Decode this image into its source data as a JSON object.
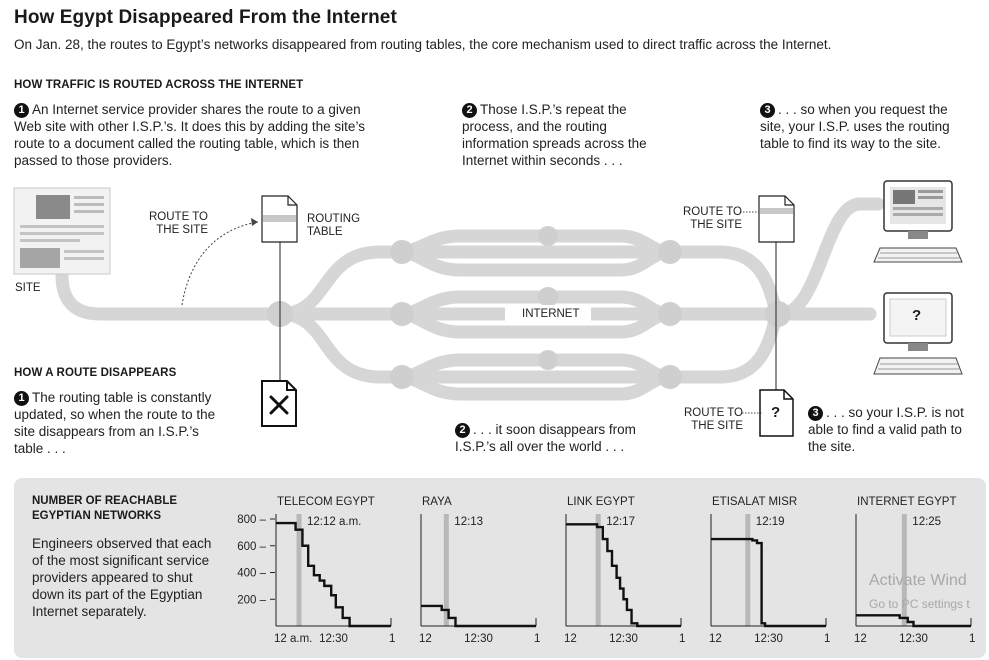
{
  "header": {
    "title": "How Egypt Disappeared From the Internet",
    "subtitle": "On Jan. 28, the routes to Egypt’s networks disappeared from routing tables, the core mechanism used to direct traffic across the Internet."
  },
  "routing": {
    "heading": "HOW TRAFFIC IS ROUTED ACROSS THE INTERNET",
    "steps": [
      {
        "num": "1",
        "text": "An Internet service provider shares the route to a given Web site with other I.S.P.’s. It does this by adding the site’s route to a document called the routing table, which is then passed to those providers."
      },
      {
        "num": "2",
        "text": "Those I.S.P.’s repeat the process, and the routing information spreads across the Internet within seconds . . ."
      },
      {
        "num": "3",
        "text": ". . . so when you request the site, your I.S.P. uses the routing table to find its way to the site."
      }
    ]
  },
  "diagram": {
    "site_label": "SITE",
    "route_to_site_1": "ROUTE TO THE SITE",
    "routing_table": "ROUTING TABLE",
    "internet": "INTERNET",
    "route_to_site_2": "ROUTE TO THE SITE",
    "route_to_site_3": "ROUTE TO THE SITE",
    "question": "?"
  },
  "disappear": {
    "heading": "HOW A ROUTE DISAPPEARS",
    "steps": [
      {
        "num": "1",
        "text": "The routing table is constantly updated, so when the route to the site disappears from an I.S.P.’s table . . ."
      },
      {
        "num": "2",
        "text": ". . . it soon disappears from I.S.P.’s all over the world . . ."
      },
      {
        "num": "3",
        "text": ". . . so your I.S.P. is not able to find a valid path to the site."
      }
    ]
  },
  "panel": {
    "title": "NUMBER OF REACHABLE EGYPTIAN NETWORKS",
    "description": "Engineers observed that each of the most significant service providers appeared to shut down its part of the Egyptian Internet separately."
  },
  "chart_data": [
    {
      "type": "line",
      "title": "TELECOM EGYPT",
      "shutdown_label": "12:12 a.m.",
      "shutdown_time": 0.2,
      "ylim": [
        0,
        800
      ],
      "yticks": [
        800,
        600,
        400,
        200
      ],
      "xlim": [
        0,
        1
      ],
      "xtick_labels": [
        "12 a.m.",
        "12:30",
        "1"
      ],
      "x": [
        0,
        0.17,
        0.17,
        0.23,
        0.23,
        0.28,
        0.28,
        0.33,
        0.33,
        0.38,
        0.38,
        0.42,
        0.42,
        0.48,
        0.48,
        0.52,
        0.52,
        0.58,
        0.58,
        0.64,
        0.64,
        0.75,
        0.75,
        1.0
      ],
      "y": [
        770,
        770,
        720,
        720,
        600,
        600,
        450,
        450,
        380,
        380,
        340,
        340,
        300,
        300,
        230,
        230,
        140,
        140,
        60,
        60,
        0,
        0,
        0,
        0
      ]
    },
    {
      "type": "line",
      "title": "RAYA",
      "shutdown_label": "12:13",
      "shutdown_time": 0.22,
      "ylim": [
        0,
        800
      ],
      "xlim": [
        0,
        1
      ],
      "xtick_labels": [
        "12",
        "12:30",
        "1"
      ],
      "x": [
        0,
        0.18,
        0.18,
        0.24,
        0.24,
        0.3,
        0.3,
        1.0
      ],
      "y": [
        150,
        150,
        120,
        120,
        60,
        60,
        0,
        0
      ]
    },
    {
      "type": "line",
      "title": "LINK EGYPT",
      "shutdown_label": "12:17",
      "shutdown_time": 0.28,
      "ylim": [
        0,
        800
      ],
      "xlim": [
        0,
        1
      ],
      "xtick_labels": [
        "12",
        "12:30",
        "1"
      ],
      "x": [
        0,
        0.27,
        0.27,
        0.32,
        0.32,
        0.36,
        0.36,
        0.4,
        0.4,
        0.44,
        0.44,
        0.47,
        0.47,
        0.5,
        0.5,
        0.53,
        0.53,
        0.57,
        0.57,
        0.62,
        0.62,
        1.0
      ],
      "y": [
        760,
        760,
        740,
        740,
        650,
        650,
        560,
        560,
        450,
        450,
        360,
        360,
        280,
        280,
        200,
        200,
        120,
        120,
        20,
        20,
        0,
        0
      ]
    },
    {
      "type": "line",
      "title": "ETISALAT MISR",
      "shutdown_label": "12:19",
      "shutdown_time": 0.32,
      "ylim": [
        0,
        800
      ],
      "xlim": [
        0,
        1
      ],
      "xtick_labels": [
        "12",
        "12:30",
        "1"
      ],
      "x": [
        0,
        0.36,
        0.36,
        0.4,
        0.4,
        0.44,
        0.44,
        0.47,
        0.47,
        1.0
      ],
      "y": [
        650,
        650,
        640,
        640,
        620,
        620,
        20,
        20,
        0,
        0
      ]
    },
    {
      "type": "line",
      "title": "INTERNET EGYPT",
      "shutdown_label": "12:25",
      "shutdown_time": 0.42,
      "ylim": [
        0,
        800
      ],
      "xlim": [
        0,
        1
      ],
      "xtick_labels": [
        "12",
        "12:30",
        "1"
      ],
      "x": [
        0,
        0.38,
        0.38,
        0.45,
        0.45,
        0.5,
        0.5,
        1.0
      ],
      "y": [
        80,
        80,
        60,
        60,
        30,
        30,
        0,
        0
      ]
    }
  ],
  "watermark": {
    "line1": "Activate Wind",
    "line2": "Go to PC settings t"
  }
}
